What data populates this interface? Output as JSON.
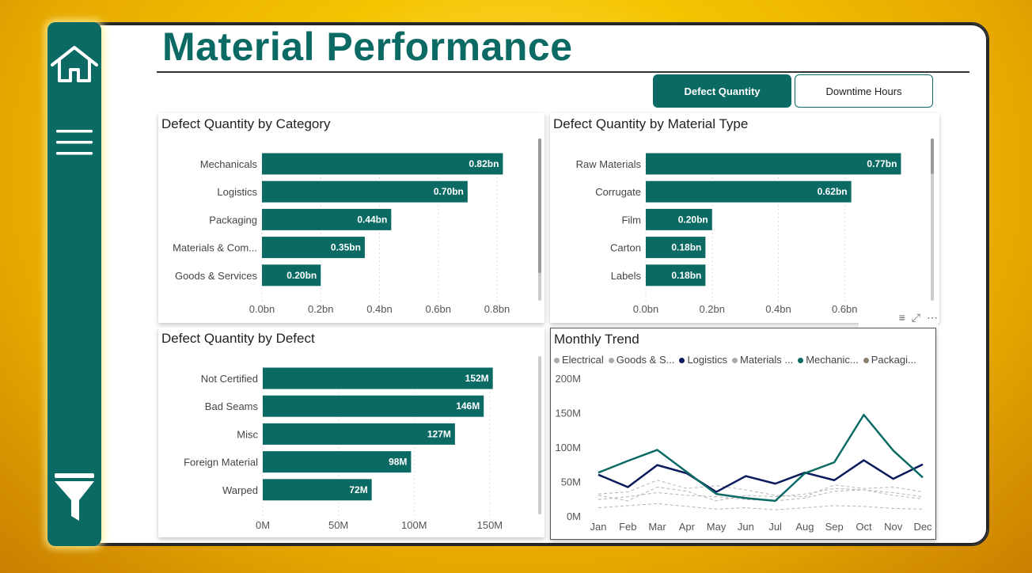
{
  "page": {
    "title": "Material Performance",
    "tabs": [
      {
        "label": "Defect Quantity",
        "active": true
      },
      {
        "label": "Downtime Hours",
        "active": false
      }
    ]
  },
  "sidebar": {
    "icons": [
      "home-icon",
      "menu-icon",
      "filter-icon"
    ]
  },
  "colors": {
    "brand": "#0b6b64",
    "navy": "#0a1a5c",
    "muted_series": "#b5b5b5"
  },
  "panels": {
    "by_category": {
      "title": "Defect Quantity by Category",
      "chart_data": {
        "type": "bar",
        "orientation": "horizontal",
        "categories": [
          "Mechanicals",
          "Logistics",
          "Packaging",
          "Materials & Com...",
          "Goods & Services"
        ],
        "values": [
          0.82,
          0.7,
          0.44,
          0.35,
          0.2
        ],
        "data_labels": [
          "0.82bn",
          "0.70bn",
          "0.44bn",
          "0.35bn",
          "0.20bn"
        ],
        "xticks": [
          "0.0bn",
          "0.2bn",
          "0.4bn",
          "0.6bn",
          "0.8bn"
        ],
        "xlim": [
          0,
          0.8
        ],
        "grid": "vertical dotted"
      }
    },
    "by_material": {
      "title": "Defect Quantity by Material Type",
      "chart_data": {
        "type": "bar",
        "orientation": "horizontal",
        "categories": [
          "Raw Materials",
          "Corrugate",
          "Film",
          "Carton",
          "Labels"
        ],
        "values": [
          0.77,
          0.62,
          0.2,
          0.18,
          0.18
        ],
        "data_labels": [
          "0.77bn",
          "0.62bn",
          "0.20bn",
          "0.18bn",
          "0.18bn"
        ],
        "xticks": [
          "0.0bn",
          "0.2bn",
          "0.4bn",
          "0.6bn"
        ],
        "xlim": [
          0,
          0.8
        ],
        "grid": "vertical dotted"
      }
    },
    "by_defect": {
      "title": "Defect Quantity by Defect",
      "chart_data": {
        "type": "bar",
        "orientation": "horizontal",
        "categories": [
          "Not Certified",
          "Bad Seams",
          "Misc",
          "Foreign Material",
          "Warped"
        ],
        "values": [
          152,
          146,
          127,
          98,
          72
        ],
        "data_labels": [
          "152M",
          "146M",
          "127M",
          "98M",
          "72M"
        ],
        "xticks": [
          "0M",
          "50M",
          "100M",
          "150M"
        ],
        "xlim": [
          0,
          160
        ],
        "grid": "vertical dotted"
      }
    },
    "monthly_trend": {
      "title": "Monthly Trend",
      "legend": [
        {
          "name": "Electrical",
          "color": "#aaaaaa"
        },
        {
          "name": "Goods & S...",
          "color": "#aaaaaa"
        },
        {
          "name": "Logistics",
          "color": "#0a1a5c"
        },
        {
          "name": "Materials ...",
          "color": "#aaaaaa"
        },
        {
          "name": "Mechanic...",
          "color": "#0b6b64"
        },
        {
          "name": "Packagi...",
          "color": "#8a7f6a"
        }
      ],
      "chart_data": {
        "type": "line",
        "x": [
          "Jan",
          "Feb",
          "Mar",
          "Apr",
          "May",
          "Jun",
          "Jul",
          "Aug",
          "Sep",
          "Oct",
          "Nov",
          "Dec"
        ],
        "yticks": [
          "0M",
          "50M",
          "100M",
          "150M",
          "200M"
        ],
        "ylim": [
          0,
          200
        ],
        "series": [
          {
            "name": "Logistics",
            "color": "#0a1a5c",
            "width": 2.5,
            "dash": false,
            "values": [
              60,
              42,
              74,
              62,
              35,
              58,
              47,
              63,
              52,
              81,
              54,
              75
            ]
          },
          {
            "name": "Mechanic...",
            "color": "#0b6b64",
            "width": 2.5,
            "dash": false,
            "values": [
              63,
              80,
              96,
              64,
              32,
              26,
              22,
              62,
              78,
              147,
              95,
              56
            ]
          },
          {
            "name": "Electrical",
            "color": "#b5b5b5",
            "width": 1,
            "dash": true,
            "values": [
              32,
              35,
              52,
              40,
              44,
              38,
              30,
              28,
              45,
              40,
              42,
              35
            ]
          },
          {
            "name": "Goods & S...",
            "color": "#b5b5b5",
            "width": 1,
            "dash": true,
            "values": [
              24,
              28,
              34,
              30,
              28,
              24,
              22,
              26,
              36,
              38,
              30,
              25
            ]
          },
          {
            "name": "Materials ...",
            "color": "#b5b5b5",
            "width": 1,
            "dash": true,
            "values": [
              30,
              22,
              42,
              36,
              22,
              30,
              28,
              32,
              40,
              38,
              34,
              28
            ]
          },
          {
            "name": "Packagi...",
            "color": "#b5b5b5",
            "width": 1,
            "dash": true,
            "values": [
              12,
              15,
              18,
              14,
              10,
              12,
              9,
              12,
              15,
              14,
              11,
              10
            ]
          }
        ]
      }
    }
  }
}
